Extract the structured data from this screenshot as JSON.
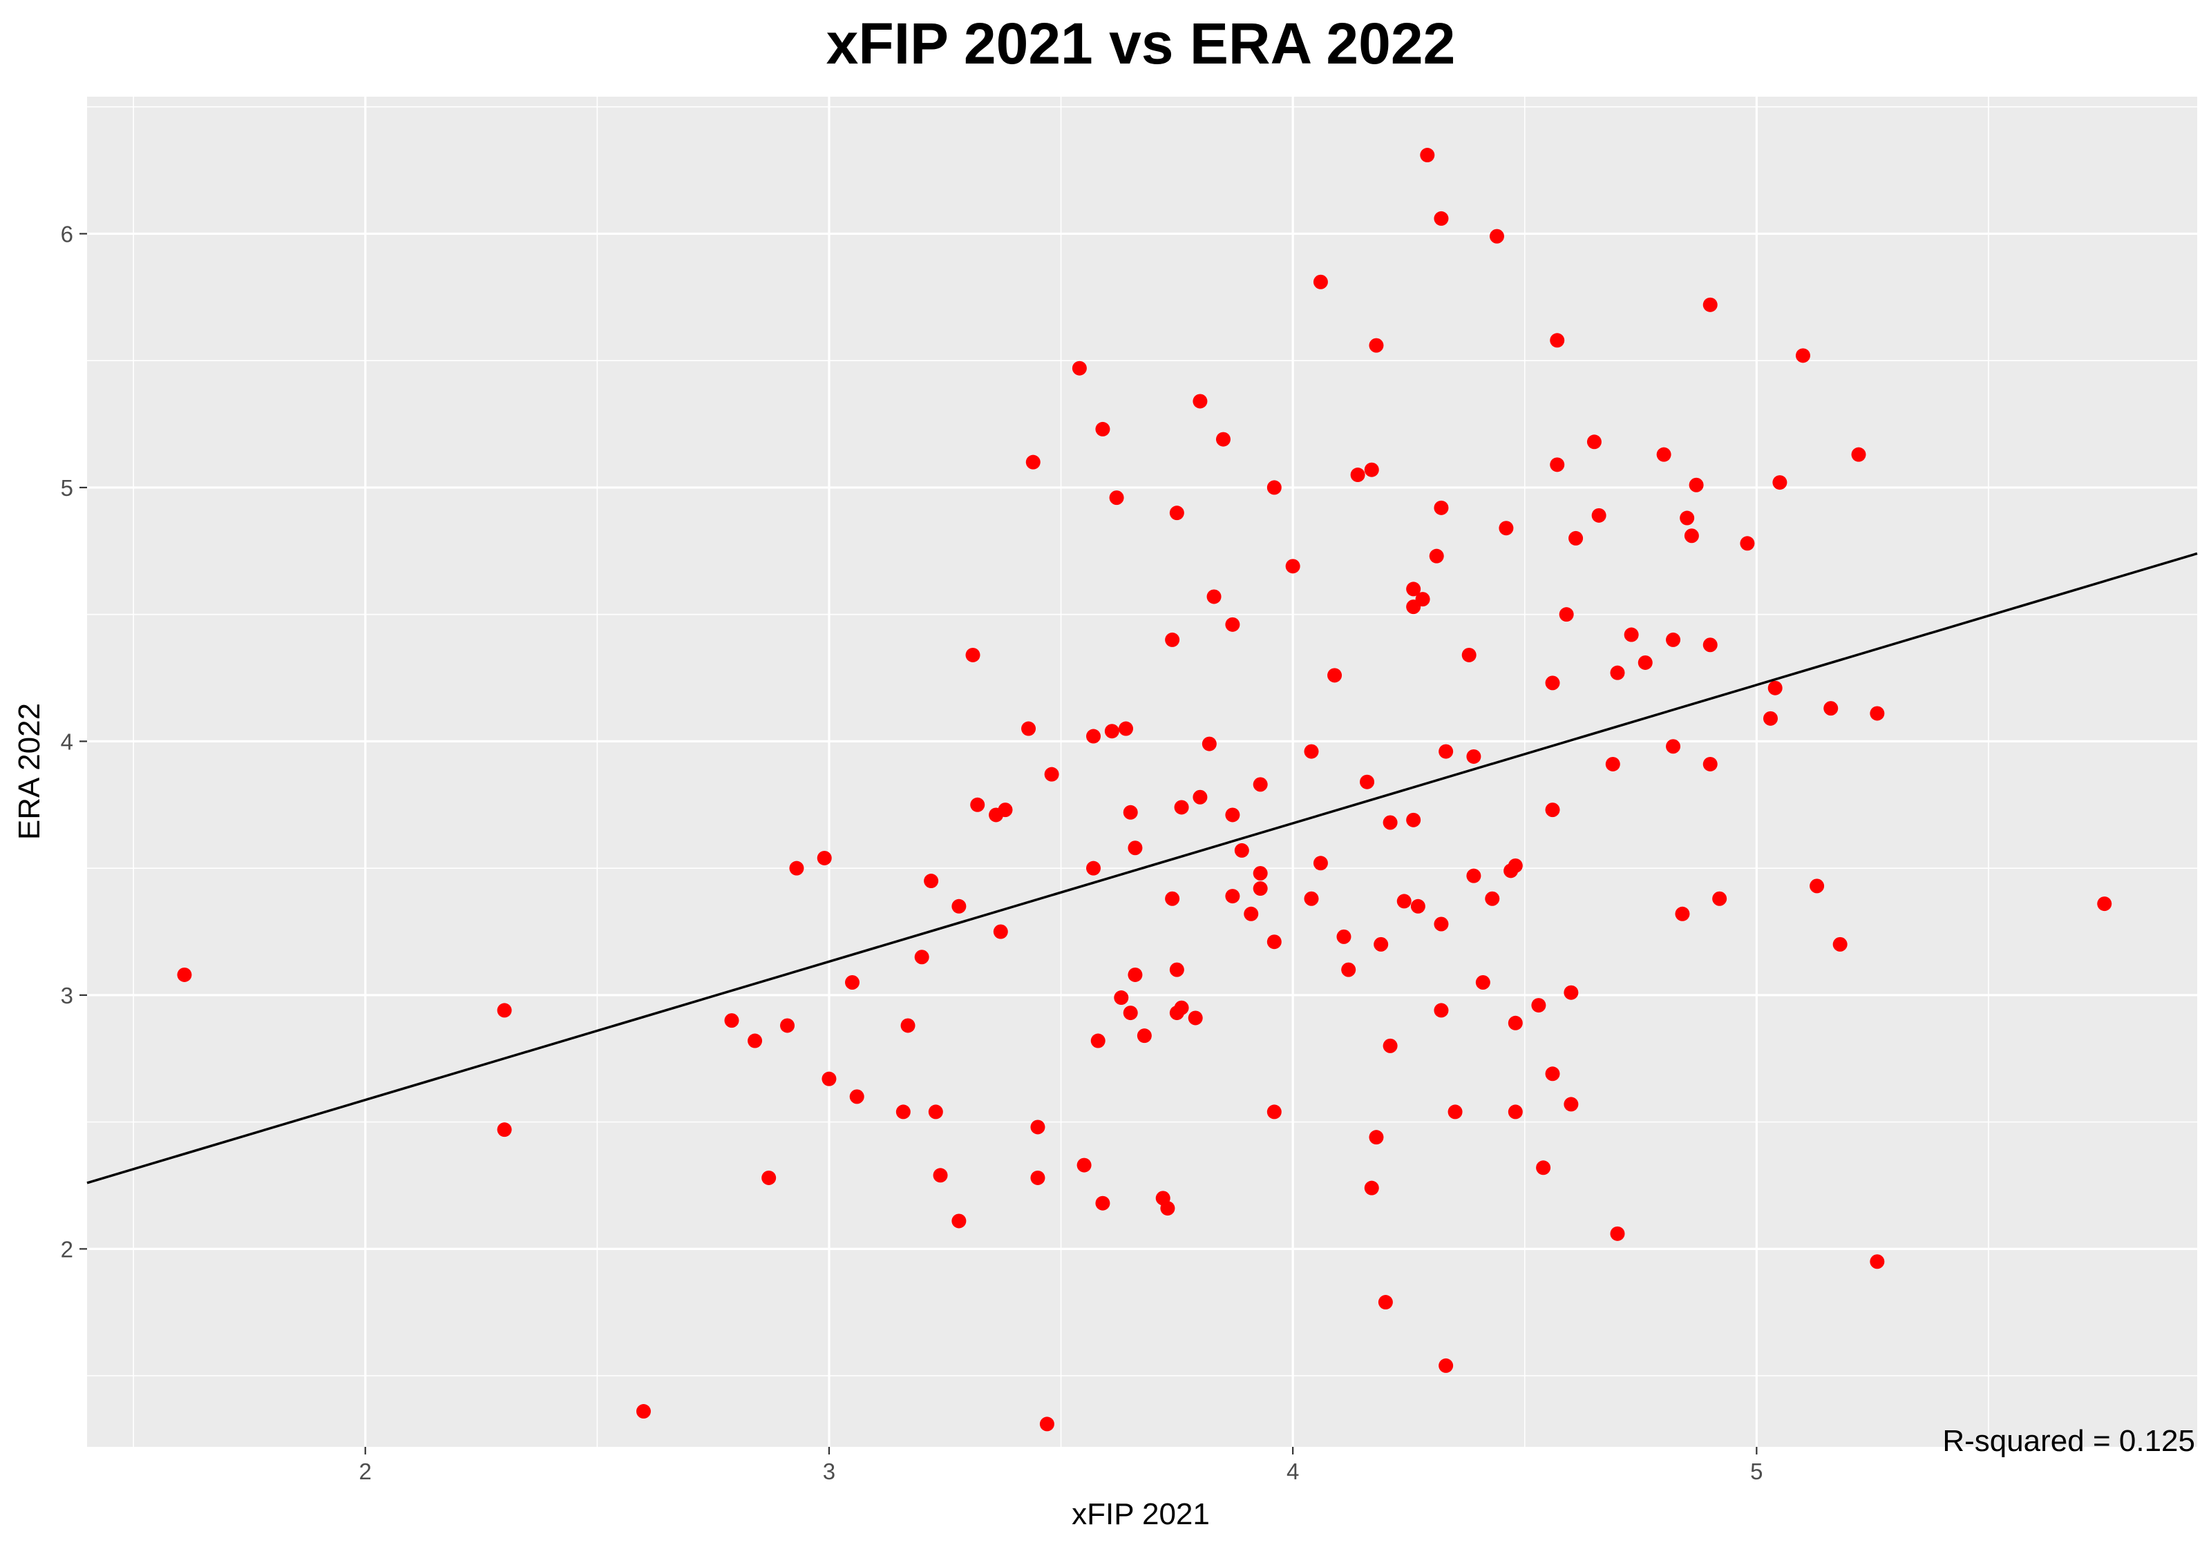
{
  "chart_data": {
    "type": "scatter",
    "title": "xFIP 2021 vs ERA 2022",
    "xlabel": "xFIP 2021",
    "ylabel": "ERA 2022",
    "xlim": [
      1.4,
      5.95
    ],
    "ylim": [
      1.22,
      6.54
    ],
    "x_ticks": [
      2,
      3,
      4,
      5
    ],
    "y_ticks": [
      2,
      3,
      4,
      5,
      6
    ],
    "grid": true,
    "background": "#ebebeb",
    "point_color": "#ff0000",
    "line_color": "#000000",
    "annotation": "R-squared = 0.125",
    "regression_line": {
      "x": [
        1.4,
        5.95
      ],
      "y": [
        2.26,
        4.74
      ]
    },
    "points": [
      {
        "x": 1.61,
        "y": 3.08
      },
      {
        "x": 2.3,
        "y": 2.94
      },
      {
        "x": 2.3,
        "y": 2.47
      },
      {
        "x": 2.6,
        "y": 1.36
      },
      {
        "x": 2.79,
        "y": 2.9
      },
      {
        "x": 2.84,
        "y": 2.82
      },
      {
        "x": 2.87,
        "y": 2.28
      },
      {
        "x": 2.91,
        "y": 2.88
      },
      {
        "x": 2.93,
        "y": 3.5
      },
      {
        "x": 2.99,
        "y": 3.54
      },
      {
        "x": 3.0,
        "y": 2.67
      },
      {
        "x": 3.05,
        "y": 3.05
      },
      {
        "x": 3.06,
        "y": 2.6
      },
      {
        "x": 3.16,
        "y": 2.54
      },
      {
        "x": 3.17,
        "y": 2.88
      },
      {
        "x": 3.2,
        "y": 3.15
      },
      {
        "x": 3.22,
        "y": 3.45
      },
      {
        "x": 3.23,
        "y": 2.54
      },
      {
        "x": 3.24,
        "y": 2.29
      },
      {
        "x": 3.28,
        "y": 3.35
      },
      {
        "x": 3.28,
        "y": 2.11
      },
      {
        "x": 3.31,
        "y": 4.34
      },
      {
        "x": 3.32,
        "y": 3.75
      },
      {
        "x": 3.36,
        "y": 3.71
      },
      {
        "x": 3.37,
        "y": 3.25
      },
      {
        "x": 3.38,
        "y": 3.73
      },
      {
        "x": 3.43,
        "y": 4.05
      },
      {
        "x": 3.44,
        "y": 5.1
      },
      {
        "x": 3.45,
        "y": 2.48
      },
      {
        "x": 3.45,
        "y": 2.28
      },
      {
        "x": 3.47,
        "y": 1.31
      },
      {
        "x": 3.48,
        "y": 3.87
      },
      {
        "x": 3.54,
        "y": 5.47
      },
      {
        "x": 3.55,
        "y": 2.33
      },
      {
        "x": 3.57,
        "y": 4.02
      },
      {
        "x": 3.57,
        "y": 3.5
      },
      {
        "x": 3.58,
        "y": 2.82
      },
      {
        "x": 3.59,
        "y": 5.23
      },
      {
        "x": 3.59,
        "y": 2.18
      },
      {
        "x": 3.61,
        "y": 4.04
      },
      {
        "x": 3.62,
        "y": 4.96
      },
      {
        "x": 3.63,
        "y": 2.99
      },
      {
        "x": 3.64,
        "y": 4.05
      },
      {
        "x": 3.65,
        "y": 3.72
      },
      {
        "x": 3.65,
        "y": 2.93
      },
      {
        "x": 3.66,
        "y": 3.58
      },
      {
        "x": 3.66,
        "y": 3.08
      },
      {
        "x": 3.68,
        "y": 2.84
      },
      {
        "x": 3.72,
        "y": 2.2
      },
      {
        "x": 3.73,
        "y": 2.16
      },
      {
        "x": 3.74,
        "y": 4.4
      },
      {
        "x": 3.74,
        "y": 3.38
      },
      {
        "x": 3.75,
        "y": 4.9
      },
      {
        "x": 3.75,
        "y": 3.1
      },
      {
        "x": 3.75,
        "y": 2.93
      },
      {
        "x": 3.76,
        "y": 3.74
      },
      {
        "x": 3.76,
        "y": 2.95
      },
      {
        "x": 3.79,
        "y": 2.91
      },
      {
        "x": 3.8,
        "y": 5.34
      },
      {
        "x": 3.8,
        "y": 3.78
      },
      {
        "x": 3.82,
        "y": 3.99
      },
      {
        "x": 3.83,
        "y": 4.57
      },
      {
        "x": 3.85,
        "y": 5.19
      },
      {
        "x": 3.87,
        "y": 4.46
      },
      {
        "x": 3.87,
        "y": 3.71
      },
      {
        "x": 3.87,
        "y": 3.39
      },
      {
        "x": 3.89,
        "y": 3.57
      },
      {
        "x": 3.91,
        "y": 3.32
      },
      {
        "x": 3.93,
        "y": 3.83
      },
      {
        "x": 3.93,
        "y": 3.48
      },
      {
        "x": 3.93,
        "y": 3.42
      },
      {
        "x": 3.96,
        "y": 5.0
      },
      {
        "x": 3.96,
        "y": 3.21
      },
      {
        "x": 3.96,
        "y": 2.54
      },
      {
        "x": 4.0,
        "y": 4.69
      },
      {
        "x": 4.04,
        "y": 3.96
      },
      {
        "x": 4.04,
        "y": 3.38
      },
      {
        "x": 4.06,
        "y": 5.81
      },
      {
        "x": 4.06,
        "y": 3.52
      },
      {
        "x": 4.09,
        "y": 4.26
      },
      {
        "x": 4.11,
        "y": 3.23
      },
      {
        "x": 4.12,
        "y": 3.1
      },
      {
        "x": 4.14,
        "y": 5.05
      },
      {
        "x": 4.16,
        "y": 3.84
      },
      {
        "x": 4.17,
        "y": 5.07
      },
      {
        "x": 4.17,
        "y": 2.24
      },
      {
        "x": 4.18,
        "y": 5.56
      },
      {
        "x": 4.18,
        "y": 2.44
      },
      {
        "x": 4.19,
        "y": 3.2
      },
      {
        "x": 4.2,
        "y": 1.79
      },
      {
        "x": 4.21,
        "y": 3.68
      },
      {
        "x": 4.21,
        "y": 2.8
      },
      {
        "x": 4.24,
        "y": 3.37
      },
      {
        "x": 4.26,
        "y": 4.6
      },
      {
        "x": 4.26,
        "y": 4.53
      },
      {
        "x": 4.26,
        "y": 3.69
      },
      {
        "x": 4.27,
        "y": 3.35
      },
      {
        "x": 4.28,
        "y": 4.56
      },
      {
        "x": 4.29,
        "y": 6.31
      },
      {
        "x": 4.31,
        "y": 4.73
      },
      {
        "x": 4.32,
        "y": 6.06
      },
      {
        "x": 4.32,
        "y": 4.92
      },
      {
        "x": 4.32,
        "y": 3.28
      },
      {
        "x": 4.32,
        "y": 2.94
      },
      {
        "x": 4.33,
        "y": 3.96
      },
      {
        "x": 4.33,
        "y": 1.54
      },
      {
        "x": 4.35,
        "y": 2.54
      },
      {
        "x": 4.38,
        "y": 4.34
      },
      {
        "x": 4.39,
        "y": 3.94
      },
      {
        "x": 4.39,
        "y": 3.47
      },
      {
        "x": 4.41,
        "y": 3.05
      },
      {
        "x": 4.43,
        "y": 3.38
      },
      {
        "x": 4.44,
        "y": 5.99
      },
      {
        "x": 4.46,
        "y": 4.84
      },
      {
        "x": 4.47,
        "y": 3.49
      },
      {
        "x": 4.48,
        "y": 3.51
      },
      {
        "x": 4.48,
        "y": 2.89
      },
      {
        "x": 4.48,
        "y": 2.54
      },
      {
        "x": 4.53,
        "y": 2.96
      },
      {
        "x": 4.54,
        "y": 2.32
      },
      {
        "x": 4.56,
        "y": 4.23
      },
      {
        "x": 4.56,
        "y": 3.73
      },
      {
        "x": 4.56,
        "y": 2.69
      },
      {
        "x": 4.57,
        "y": 5.58
      },
      {
        "x": 4.57,
        "y": 5.09
      },
      {
        "x": 4.59,
        "y": 4.5
      },
      {
        "x": 4.6,
        "y": 3.01
      },
      {
        "x": 4.6,
        "y": 2.57
      },
      {
        "x": 4.61,
        "y": 4.8
      },
      {
        "x": 4.65,
        "y": 5.18
      },
      {
        "x": 4.66,
        "y": 4.89
      },
      {
        "x": 4.69,
        "y": 3.91
      },
      {
        "x": 4.7,
        "y": 4.27
      },
      {
        "x": 4.7,
        "y": 2.06
      },
      {
        "x": 4.73,
        "y": 4.42
      },
      {
        "x": 4.76,
        "y": 4.31
      },
      {
        "x": 4.8,
        "y": 5.13
      },
      {
        "x": 4.82,
        "y": 4.4
      },
      {
        "x": 4.82,
        "y": 3.98
      },
      {
        "x": 4.84,
        "y": 3.32
      },
      {
        "x": 4.85,
        "y": 4.88
      },
      {
        "x": 4.86,
        "y": 4.81
      },
      {
        "x": 4.87,
        "y": 5.01
      },
      {
        "x": 4.9,
        "y": 5.72
      },
      {
        "x": 4.9,
        "y": 4.38
      },
      {
        "x": 4.9,
        "y": 3.91
      },
      {
        "x": 4.92,
        "y": 3.38
      },
      {
        "x": 4.98,
        "y": 4.78
      },
      {
        "x": 5.03,
        "y": 4.09
      },
      {
        "x": 5.04,
        "y": 4.21
      },
      {
        "x": 5.05,
        "y": 5.02
      },
      {
        "x": 5.1,
        "y": 5.52
      },
      {
        "x": 5.13,
        "y": 3.43
      },
      {
        "x": 5.16,
        "y": 4.13
      },
      {
        "x": 5.18,
        "y": 3.2
      },
      {
        "x": 5.22,
        "y": 5.13
      },
      {
        "x": 5.26,
        "y": 4.11
      },
      {
        "x": 5.26,
        "y": 1.95
      },
      {
        "x": 5.75,
        "y": 3.36
      }
    ]
  }
}
